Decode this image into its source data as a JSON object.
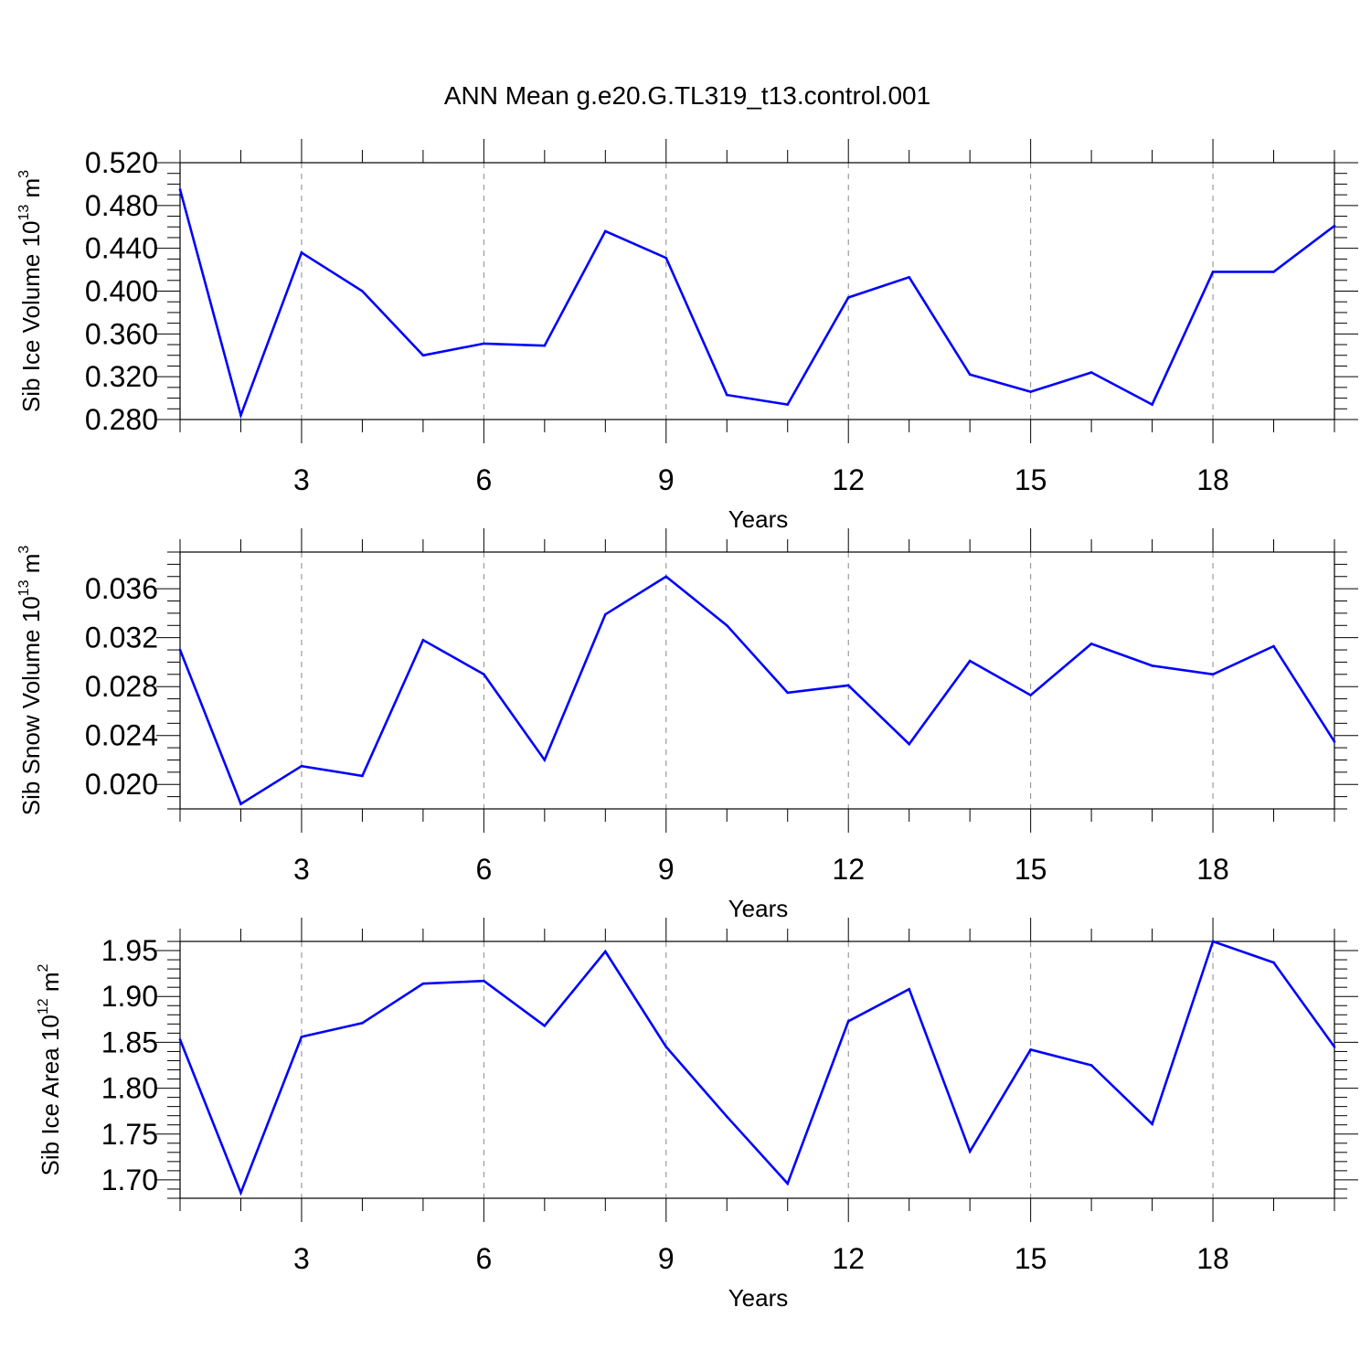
{
  "page": {
    "title": "ANN Mean g.e20.G.TL319_t13.control.001"
  },
  "colors": {
    "line": "#0000ff",
    "axes": "#000000",
    "grid": "#888888",
    "background": "#ffffff"
  },
  "chart_data": [
    {
      "type": "line",
      "title": "ANN Mean g.e20.G.TL319_t13.control.001",
      "xlabel": "Years",
      "ylabel": {
        "text": "Sib Ice Volume 10",
        "exp": "13",
        "unit": " m",
        "unit_exp": "3"
      },
      "xlim": [
        1,
        20
      ],
      "ylim": [
        0.28,
        0.52
      ],
      "x_ticks": [
        3,
        6,
        9,
        12,
        15,
        18
      ],
      "x_tick_labels": [
        "3",
        "6",
        "9",
        "12",
        "15",
        "18"
      ],
      "y_ticks": [
        0.28,
        0.32,
        0.36,
        0.4,
        0.44,
        0.48,
        0.52
      ],
      "y_tick_labels": [
        "0.280",
        "0.320",
        "0.360",
        "0.400",
        "0.440",
        "0.480",
        "0.520"
      ],
      "y_minor_step": 0.01,
      "grid": "vertical dashed at major x ticks",
      "x": [
        1,
        2,
        3,
        4,
        5,
        6,
        7,
        8,
        9,
        10,
        11,
        12,
        13,
        14,
        15,
        16,
        17,
        18,
        19,
        20
      ],
      "values": [
        0.495,
        0.284,
        0.436,
        0.4,
        0.34,
        0.351,
        0.349,
        0.456,
        0.431,
        0.303,
        0.294,
        0.394,
        0.413,
        0.322,
        0.306,
        0.324,
        0.294,
        0.418,
        0.418,
        0.461
      ]
    },
    {
      "type": "line",
      "xlabel": "Years",
      "ylabel": {
        "text": "Sib Snow Volume 10",
        "exp": "13",
        "unit": " m",
        "unit_exp": "3"
      },
      "xlim": [
        1,
        20
      ],
      "ylim": [
        0.018,
        0.039
      ],
      "x_ticks": [
        3,
        6,
        9,
        12,
        15,
        18
      ],
      "x_tick_labels": [
        "3",
        "6",
        "9",
        "12",
        "15",
        "18"
      ],
      "y_ticks": [
        0.02,
        0.024,
        0.028,
        0.032,
        0.036
      ],
      "y_tick_labels": [
        "0.020",
        "0.024",
        "0.028",
        "0.032",
        "0.036"
      ],
      "y_minor_step": 0.001,
      "grid": "vertical dashed at major x ticks",
      "x": [
        1,
        2,
        3,
        4,
        5,
        6,
        7,
        8,
        9,
        10,
        11,
        12,
        13,
        14,
        15,
        16,
        17,
        18,
        19,
        20
      ],
      "values": [
        0.031,
        0.0184,
        0.0215,
        0.0207,
        0.0318,
        0.029,
        0.022,
        0.0339,
        0.037,
        0.033,
        0.0275,
        0.0281,
        0.0233,
        0.0301,
        0.0273,
        0.0315,
        0.0297,
        0.029,
        0.0313,
        0.0235
      ]
    },
    {
      "type": "line",
      "xlabel": "Years",
      "ylabel": {
        "text": "Sib Ice Area 10",
        "exp": "12",
        "unit": " m",
        "unit_exp": "2"
      },
      "xlim": [
        1,
        20
      ],
      "ylim": [
        1.68,
        1.96
      ],
      "x_ticks": [
        3,
        6,
        9,
        12,
        15,
        18
      ],
      "x_tick_labels": [
        "3",
        "6",
        "9",
        "12",
        "15",
        "18"
      ],
      "y_ticks": [
        1.7,
        1.75,
        1.8,
        1.85,
        1.9,
        1.95
      ],
      "y_tick_labels": [
        "1.70",
        "1.75",
        "1.80",
        "1.85",
        "1.90",
        "1.95"
      ],
      "y_minor_step": 0.01,
      "grid": "vertical dashed at major x ticks",
      "x": [
        1,
        2,
        3,
        4,
        5,
        6,
        7,
        8,
        9,
        10,
        11,
        12,
        13,
        14,
        15,
        16,
        17,
        18,
        19,
        20
      ],
      "values": [
        1.853,
        1.686,
        1.856,
        1.871,
        1.914,
        1.917,
        1.868,
        1.949,
        1.845,
        1.769,
        1.696,
        1.873,
        1.908,
        1.731,
        1.842,
        1.825,
        1.761,
        1.96,
        1.937,
        1.845
      ]
    }
  ]
}
